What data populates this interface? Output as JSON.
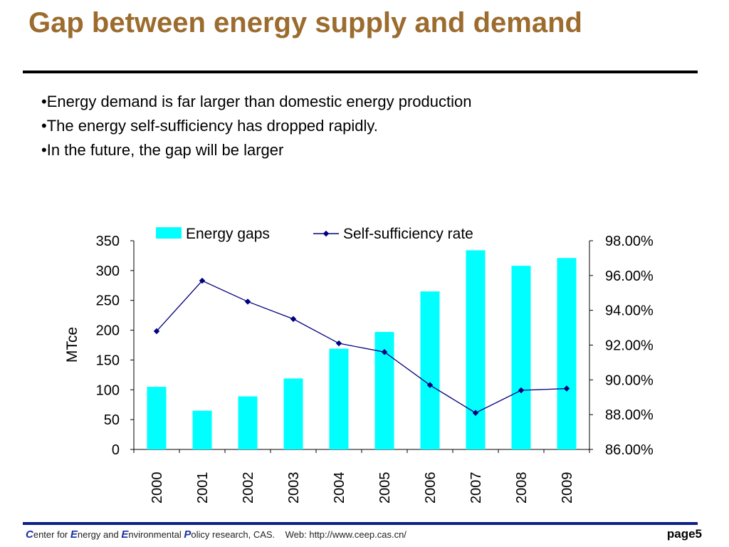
{
  "title": "Gap between energy supply and demand",
  "bullets": [
    "•Energy demand is far larger than domestic energy production",
    "•The energy self-sufficiency has dropped rapidly.",
    "•In the future, the gap will be larger"
  ],
  "chart_data": {
    "type": "bar",
    "categories": [
      "2000",
      "2001",
      "2002",
      "2003",
      "2004",
      "2005",
      "2006",
      "2007",
      "2008",
      "2009"
    ],
    "series": [
      {
        "name": "Energy gaps",
        "type": "bar",
        "axis": "left",
        "color": "#00ffff",
        "values": [
          105,
          65,
          89,
          119,
          169,
          197,
          265,
          334,
          308,
          321
        ]
      },
      {
        "name": "Self-sufficiency rate",
        "type": "line",
        "axis": "right",
        "color": "#000080",
        "values": [
          92.8,
          95.7,
          94.5,
          93.5,
          92.1,
          91.6,
          89.7,
          88.1,
          89.4,
          89.5
        ]
      }
    ],
    "ylabel": "MTce",
    "ylim": [
      0,
      350
    ],
    "yticks": [
      "0",
      "50",
      "100",
      "150",
      "200",
      "250",
      "300",
      "350"
    ],
    "y2lim": [
      86,
      98
    ],
    "y2ticks": [
      "86.00%",
      "88.00%",
      "90.00%",
      "92.00%",
      "94.00%",
      "96.00%",
      "98.00%"
    ],
    "grid": false,
    "legend": "top"
  },
  "footer": {
    "c": "C",
    "enter_for": "enter for ",
    "e1": "E",
    "nergy_and": "nergy and ",
    "e2": "E",
    "nvironmental": "nvironmental ",
    "p": "P",
    "olicy": "olicy research, CAS.",
    "web": "Web: http://www.ceep.cas.cn/",
    "page": "page5"
  }
}
